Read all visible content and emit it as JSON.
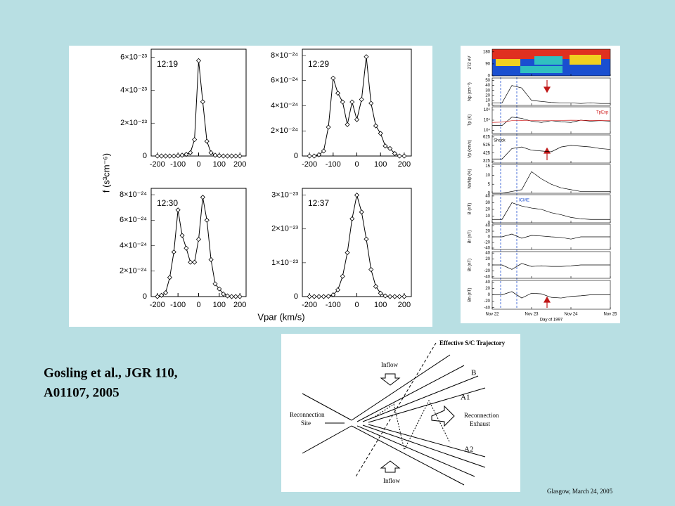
{
  "citation": [
    "Gosling et al., JGR 110,",
    "A01107, 2005"
  ],
  "footer": "Glasgow,  March 24, 2005",
  "distribution_axes": {
    "ylabel": "f (s³cm⁻⁶)",
    "xlabel": "Vpar (km/s)"
  },
  "stack_xaxis": {
    "xlim": [
      22,
      25
    ],
    "xticks": [
      {
        "value": 22,
        "label": "Nov 22"
      },
      {
        "value": 23,
        "label": "Nov 23"
      },
      {
        "value": 24,
        "label": "Nov 24"
      },
      {
        "value": 25,
        "label": "Nov 25"
      }
    ],
    "xlabel": "Day of 1997"
  },
  "diagram": {
    "labels": [
      "Effective S/C Trajectory",
      "Inflow",
      "B",
      "A1",
      "Reconnection",
      "Site",
      "Reconnection",
      "Exhaust",
      "A2",
      "Inflow"
    ]
  },
  "chart_data": [
    {
      "type": "line",
      "annotation": "12:19",
      "color": "#000",
      "marker": "diamond",
      "xlim": [
        -230,
        230
      ],
      "xticks": [
        -200,
        -100,
        0,
        100,
        200
      ],
      "ylim": [
        0,
        6.5e-23
      ],
      "yticks": [
        0,
        {
          "value": 2e-23,
          "label": "2×10⁻²³"
        },
        {
          "value": 4e-23,
          "label": "4×10⁻²³"
        },
        {
          "value": 6e-23,
          "label": "6×10⁻²³"
        }
      ],
      "x": [
        -200,
        -180,
        -160,
        -140,
        -120,
        -100,
        -80,
        -60,
        -40,
        -20,
        0,
        20,
        40,
        60,
        80,
        100,
        120,
        140,
        160,
        180,
        200
      ],
      "values": [
        0,
        0,
        0,
        0,
        0,
        2e-25,
        5e-25,
        1e-24,
        2e-24,
        1e-23,
        5.8e-23,
        3.3e-23,
        9e-24,
        2e-24,
        5e-25,
        2e-25,
        0,
        0,
        0,
        0,
        0
      ]
    },
    {
      "type": "line",
      "annotation": "12:29",
      "color": "#000",
      "marker": "diamond",
      "xlim": [
        -230,
        230
      ],
      "xticks": [
        -200,
        -100,
        0,
        100,
        200
      ],
      "ylim": [
        0,
        8.5e-24
      ],
      "yticks": [
        0,
        {
          "value": 2e-24,
          "label": "2×10⁻²⁴"
        },
        {
          "value": 4e-24,
          "label": "4×10⁻²⁴"
        },
        {
          "value": 6e-24,
          "label": "6×10⁻²⁴"
        },
        {
          "value": 8e-24,
          "label": "8×10⁻²⁴"
        }
      ],
      "x": [
        -200,
        -180,
        -160,
        -140,
        -120,
        -100,
        -80,
        -60,
        -40,
        -20,
        0,
        20,
        40,
        60,
        80,
        100,
        120,
        140,
        160,
        180,
        200
      ],
      "values": [
        0,
        0,
        1e-25,
        4e-25,
        2.3e-24,
        6.2e-24,
        5e-24,
        4.3e-24,
        2.5e-24,
        4.3e-24,
        2.9e-24,
        4.5e-24,
        7.9e-24,
        4.2e-24,
        2.4e-24,
        1.8e-24,
        8e-25,
        6e-25,
        2e-25,
        0,
        0
      ]
    },
    {
      "type": "line",
      "annotation": "12:30",
      "color": "#000",
      "marker": "diamond",
      "xlim": [
        -230,
        230
      ],
      "xticks": [
        -200,
        -100,
        0,
        100,
        200
      ],
      "ylim": [
        0,
        8.5e-24
      ],
      "yticks": [
        0,
        {
          "value": 2e-24,
          "label": "2×10⁻²⁴"
        },
        {
          "value": 4e-24,
          "label": "4×10⁻²⁴"
        },
        {
          "value": 6e-24,
          "label": "6×10⁻²⁴"
        },
        {
          "value": 8e-24,
          "label": "8×10⁻²⁴"
        }
      ],
      "x": [
        -200,
        -180,
        -160,
        -140,
        -120,
        -100,
        -80,
        -60,
        -40,
        -20,
        0,
        20,
        40,
        60,
        80,
        100,
        120,
        140,
        160,
        180,
        200
      ],
      "values": [
        0,
        1e-25,
        3e-25,
        1.5e-24,
        3.5e-24,
        6.8e-24,
        4.8e-24,
        3.8e-24,
        2.7e-24,
        2.7e-24,
        4.5e-24,
        7.8e-24,
        6e-24,
        2.9e-24,
        1e-24,
        6e-25,
        2e-25,
        5e-26,
        0,
        0,
        0
      ]
    },
    {
      "type": "line",
      "annotation": "12:37",
      "color": "#000",
      "marker": "diamond",
      "xlim": [
        -230,
        230
      ],
      "xticks": [
        -200,
        -100,
        0,
        100,
        200
      ],
      "ylim": [
        0,
        3.2e-23
      ],
      "yticks": [
        0,
        {
          "value": 1e-23,
          "label": "1×10⁻²³"
        },
        {
          "value": 2e-23,
          "label": "2×10⁻²³"
        },
        {
          "value": 3e-23,
          "label": "3×10⁻²³"
        }
      ],
      "x": [
        -200,
        -180,
        -160,
        -140,
        -120,
        -100,
        -80,
        -60,
        -40,
        -20,
        0,
        20,
        40,
        60,
        80,
        100,
        120,
        140,
        160,
        180,
        200
      ],
      "values": [
        0,
        0,
        0,
        0,
        1e-25,
        5e-25,
        2e-24,
        6e-24,
        1.3e-23,
        2.3e-23,
        3e-23,
        2.5e-23,
        1.7e-23,
        8e-24,
        3e-24,
        1e-24,
        2e-25,
        0,
        0,
        0,
        0
      ]
    },
    {
      "type": "heatmap",
      "ylabel": "272 eV",
      "ylim": [
        0,
        200
      ],
      "yticks": [
        0,
        90,
        180
      ]
    },
    {
      "type": "line",
      "ylabel": "Np (cm⁻³)",
      "ylim": [
        0,
        55
      ],
      "yticks": [
        0,
        10,
        20,
        30,
        40,
        50
      ],
      "x": [
        22,
        22.25,
        22.5,
        22.75,
        23,
        23.25,
        23.5,
        23.75,
        24,
        24.25,
        24.5,
        24.75,
        25
      ],
      "values": [
        5,
        5,
        40,
        35,
        10,
        8,
        6,
        5,
        5,
        4,
        5,
        4,
        4
      ]
    },
    {
      "type": "line",
      "ylabel": "Tp (K)",
      "ylog": true,
      "ylim": [
        5000,
        2000000
      ],
      "yticks": [
        {
          "value": 10000,
          "label": "10⁴"
        },
        {
          "value": 100000,
          "label": "10⁵"
        },
        {
          "value": 1000000,
          "label": "10⁶"
        }
      ],
      "x": [
        22,
        22.25,
        22.5,
        22.75,
        23,
        23.25,
        23.5,
        23.75,
        24,
        24.25,
        24.5,
        24.75,
        25
      ],
      "series": [
        {
          "color": "#000",
          "values": [
            30000,
            30000,
            200000,
            150000,
            80000,
            60000,
            90000,
            70000,
            60000,
            100000,
            80000,
            90000,
            80000
          ]
        },
        {
          "name": "TpExp",
          "color": "#d02020",
          "values": [
            60000,
            65000,
            90000,
            95000,
            90000,
            88000,
            90000,
            95000,
            98000,
            96000,
            94000,
            92000,
            90000
          ]
        }
      ]
    },
    {
      "type": "line",
      "ylabel": "Vp (km/s)",
      "annotation": "Shock",
      "ylim": [
        300,
        650
      ],
      "yticks": [
        325,
        425,
        525,
        625
      ],
      "x": [
        22,
        22.25,
        22.5,
        22.75,
        23,
        23.25,
        23.5,
        23.75,
        24,
        24.25,
        24.5,
        24.75,
        25
      ],
      "values": [
        350,
        350,
        480,
        500,
        460,
        450,
        440,
        500,
        520,
        510,
        500,
        480,
        470
      ]
    },
    {
      "type": "line",
      "ylabel": "Na/Np (%)",
      "ylim": [
        0,
        16
      ],
      "yticks": [
        0,
        5,
        10,
        15
      ],
      "x": [
        22,
        22.25,
        22.5,
        22.75,
        23,
        23.25,
        23.5,
        23.75,
        24,
        24.25,
        24.5,
        24.75,
        25
      ],
      "values": [
        0,
        0,
        1,
        2,
        12,
        8,
        5,
        3,
        2,
        1,
        1,
        1,
        1
      ]
    },
    {
      "type": "line",
      "ylabel": "B (nT)",
      "annotation": "ICME",
      "ylim": [
        0,
        42
      ],
      "yticks": [
        0,
        10,
        20,
        30,
        40
      ],
      "x": [
        22,
        22.25,
        22.5,
        22.75,
        23,
        23.25,
        23.5,
        23.75,
        24,
        24.25,
        24.5,
        24.75,
        25
      ],
      "values": [
        5,
        5,
        30,
        25,
        22,
        20,
        15,
        12,
        8,
        6,
        5,
        5,
        5
      ]
    },
    {
      "type": "line",
      "ylabel": "Br (nT)",
      "ylim": [
        -45,
        45
      ],
      "yticks": [
        -40,
        -20,
        0,
        20,
        40
      ],
      "x": [
        22,
        22.25,
        22.5,
        22.75,
        23,
        23.25,
        23.5,
        23.75,
        24,
        24.25,
        24.5,
        24.75,
        25
      ],
      "values": [
        0,
        0,
        10,
        -5,
        5,
        3,
        0,
        -2,
        -8,
        0,
        0,
        0,
        0
      ]
    },
    {
      "type": "line",
      "ylabel": "Bt (nT)",
      "ylim": [
        -45,
        45
      ],
      "yticks": [
        -40,
        -20,
        0,
        20,
        40
      ],
      "x": [
        22,
        22.25,
        22.5,
        22.75,
        23,
        23.25,
        23.5,
        23.75,
        24,
        24.25,
        24.5,
        24.75,
        25
      ],
      "values": [
        0,
        0,
        -15,
        5,
        -5,
        -3,
        -5,
        -5,
        -3,
        0,
        0,
        0,
        0
      ]
    },
    {
      "type": "line",
      "ylabel": "Bn (nT)",
      "ylim": [
        -45,
        45
      ],
      "yticks": [
        -40,
        -20,
        0,
        20,
        40
      ],
      "x": [
        22,
        22.25,
        22.5,
        22.75,
        23,
        23.25,
        23.5,
        23.75,
        24,
        24.25,
        24.5,
        24.75,
        25
      ],
      "values": [
        0,
        0,
        10,
        -10,
        5,
        3,
        -8,
        -10,
        -5,
        -3,
        0,
        0,
        0
      ]
    }
  ]
}
